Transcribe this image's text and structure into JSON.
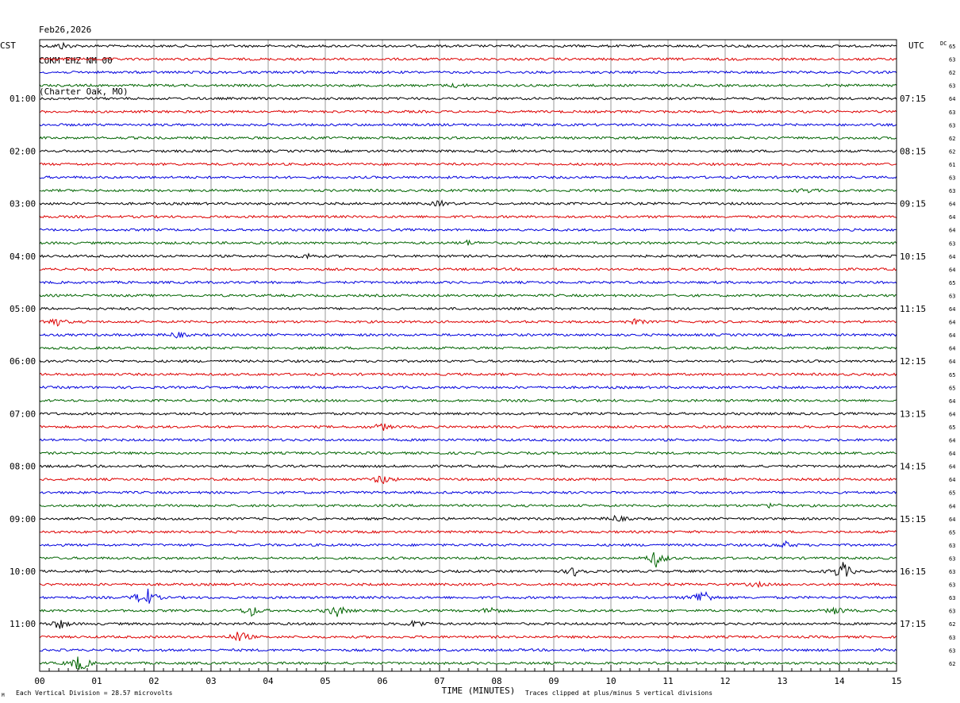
{
  "header": {
    "date": "Feb26,2026",
    "station": "COKM EHZ NM 00",
    "location": "(Charter Oak, MO)"
  },
  "chart_data": {
    "type": "line",
    "title": "",
    "left_axis_label": "CST",
    "right_axis_label": "UTC",
    "dc_label": "DC",
    "xlabel": "TIME (MINUTES)",
    "xlim": [
      0,
      15
    ],
    "x_ticks": [
      "00",
      "01",
      "02",
      "03",
      "04",
      "05",
      "06",
      "07",
      "08",
      "09",
      "10",
      "11",
      "12",
      "13",
      "14",
      "15"
    ],
    "trace_colors": [
      "#000000",
      "#dd0000",
      "#0000dd",
      "#006400"
    ],
    "trace_count": 48,
    "left_hour_labels": [
      {
        "row": 4,
        "label": "01:00"
      },
      {
        "row": 8,
        "label": "02:00"
      },
      {
        "row": 12,
        "label": "03:00"
      },
      {
        "row": 16,
        "label": "04:00"
      },
      {
        "row": 20,
        "label": "05:00"
      },
      {
        "row": 24,
        "label": "06:00"
      },
      {
        "row": 28,
        "label": "07:00"
      },
      {
        "row": 32,
        "label": "08:00"
      },
      {
        "row": 36,
        "label": "09:00"
      },
      {
        "row": 40,
        "label": "10:00"
      },
      {
        "row": 44,
        "label": "11:00"
      }
    ],
    "right_hour_labels": [
      {
        "row": 4,
        "label": "07:15"
      },
      {
        "row": 8,
        "label": "08:15"
      },
      {
        "row": 12,
        "label": "09:15"
      },
      {
        "row": 16,
        "label": "10:15"
      },
      {
        "row": 20,
        "label": "11:15"
      },
      {
        "row": 24,
        "label": "12:15"
      },
      {
        "row": 28,
        "label": "13:15"
      },
      {
        "row": 32,
        "label": "14:15"
      },
      {
        "row": 36,
        "label": "15:15"
      },
      {
        "row": 40,
        "label": "16:15"
      },
      {
        "row": 44,
        "label": "17:15"
      }
    ],
    "dc_offsets": [
      65,
      63,
      62,
      63,
      64,
      63,
      63,
      62,
      62,
      61,
      63,
      63,
      64,
      64,
      64,
      63,
      64,
      64,
      65,
      63,
      64,
      64,
      64,
      64,
      64,
      65,
      65,
      64,
      64,
      65,
      64,
      64,
      64,
      64,
      65,
      64,
      64,
      65,
      63,
      63,
      63,
      63,
      63,
      63,
      62,
      63,
      63,
      62
    ],
    "events": [
      {
        "row": 0,
        "minute": 0.4,
        "amp": 0.5
      },
      {
        "row": 3,
        "minute": 7.3,
        "amp": 0.3
      },
      {
        "row": 11,
        "minute": 13.4,
        "amp": 0.35
      },
      {
        "row": 12,
        "minute": 7.0,
        "amp": 0.45
      },
      {
        "row": 15,
        "minute": 7.5,
        "amp": 0.35
      },
      {
        "row": 16,
        "minute": 4.7,
        "amp": 0.35
      },
      {
        "row": 21,
        "minute": 0.25,
        "amp": 0.9
      },
      {
        "row": 21,
        "minute": 10.45,
        "amp": 0.4
      },
      {
        "row": 22,
        "minute": 2.4,
        "amp": 0.45
      },
      {
        "row": 29,
        "minute": 6.0,
        "amp": 0.55
      },
      {
        "row": 33,
        "minute": 6.0,
        "amp": 0.8
      },
      {
        "row": 35,
        "minute": 12.8,
        "amp": 0.35
      },
      {
        "row": 36,
        "minute": 10.1,
        "amp": 0.5
      },
      {
        "row": 38,
        "minute": 13.05,
        "amp": 0.5
      },
      {
        "row": 39,
        "minute": 10.8,
        "amp": 1.4
      },
      {
        "row": 40,
        "minute": 9.4,
        "amp": 0.9
      },
      {
        "row": 40,
        "minute": 14.05,
        "amp": 1.6
      },
      {
        "row": 41,
        "minute": 12.55,
        "amp": 0.35
      },
      {
        "row": 42,
        "minute": 1.85,
        "amp": 2.0
      },
      {
        "row": 42,
        "minute": 11.6,
        "amp": 1.6
      },
      {
        "row": 43,
        "minute": 3.7,
        "amp": 0.9
      },
      {
        "row": 43,
        "minute": 5.2,
        "amp": 1.0
      },
      {
        "row": 43,
        "minute": 7.9,
        "amp": 0.6
      },
      {
        "row": 43,
        "minute": 13.95,
        "amp": 0.6
      },
      {
        "row": 44,
        "minute": 0.35,
        "amp": 0.8
      },
      {
        "row": 44,
        "minute": 6.6,
        "amp": 0.7
      },
      {
        "row": 45,
        "minute": 3.5,
        "amp": 1.0
      },
      {
        "row": 47,
        "minute": 0.7,
        "amp": 1.5
      }
    ],
    "scale_note": "Each Vertical Division =   28.57 microvolts",
    "clip_note": "Traces clipped at plus/minus 5 vertical divisions",
    "corner_mark": "M"
  }
}
